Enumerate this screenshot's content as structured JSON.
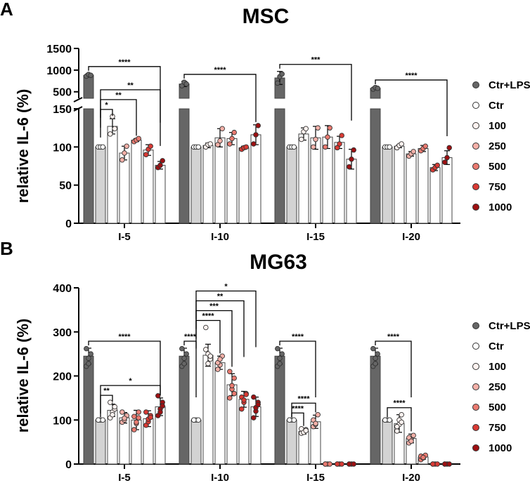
{
  "chart_data": [
    {
      "panel": "A",
      "title": "MSC",
      "type": "bar",
      "ylabel": "relative IL-6 (%)",
      "axis_break": {
        "lower_range": [
          0,
          150
        ],
        "lower_ticks": [
          0,
          50,
          100,
          150
        ],
        "upper_range": [
          350,
          1500
        ],
        "upper_ticks": [
          500,
          1000,
          1500
        ]
      },
      "categories": [
        "I-5",
        "I-10",
        "I-15",
        "I-20"
      ],
      "series": [
        {
          "name": "Ctr+LPS",
          "color": "#666666",
          "values": [
            880,
            680,
            820,
            580
          ],
          "errors": [
            40,
            60,
            150,
            30
          ],
          "points": [
            [
              860,
              900,
              880
            ],
            [
              640,
              720,
              680
            ],
            [
              700,
              850,
              910
            ],
            [
              560,
              600,
              580
            ]
          ]
        },
        {
          "name": "Ctr",
          "color": "#d3d3d3",
          "values": [
            100,
            100,
            100,
            100
          ],
          "errors": [
            0,
            0,
            0,
            0
          ],
          "points": [
            [
              100,
              100,
              100
            ],
            [
              100,
              100,
              100
            ],
            [
              100,
              100,
              100
            ],
            [
              100,
              100,
              100
            ]
          ]
        },
        {
          "name": "100",
          "color": "#ffffff",
          "values": [
            127,
            102,
            117,
            101
          ],
          "errors": [
            10,
            3,
            8,
            2
          ],
          "points": [
            [
              117,
              140,
              124
            ],
            [
              100,
              103,
              104
            ],
            [
              110,
              120,
              124
            ],
            [
              99,
              102,
              104
            ]
          ]
        },
        {
          "name": "250",
          "color": "#ffffff",
          "values": [
            92,
            112,
            112,
            91
          ],
          "errors": [
            9,
            12,
            15,
            3
          ],
          "points": [
            [
              83,
              92,
              101
            ],
            [
              103,
              108,
              124
            ],
            [
              100,
              110,
              125
            ],
            [
              88,
              91,
              94
            ]
          ]
        },
        {
          "name": "500",
          "color": "#ffffff",
          "values": [
            109,
            111,
            113,
            98
          ],
          "errors": [
            2,
            8,
            15,
            4
          ],
          "points": [
            [
              107,
              109,
              111
            ],
            [
              104,
              111,
              119
            ],
            [
              100,
              113,
              125
            ],
            [
              95,
              98,
              101
            ]
          ]
        },
        {
          "name": "750",
          "color": "#ffffff",
          "values": [
            96,
            99,
            106,
            73
          ],
          "errors": [
            7,
            2,
            8,
            4
          ],
          "points": [
            [
              90,
              97,
              101
            ],
            [
              97,
              99,
              100
            ],
            [
              99,
              104,
              115
            ],
            [
              70,
              73,
              76
            ]
          ]
        },
        {
          "name": "1000",
          "color": "#ffffff",
          "values": [
            76,
            116,
            84,
            86
          ],
          "errors": [
            5,
            13,
            13,
            9
          ],
          "points": [
            [
              73,
              76,
              82
            ],
            [
              104,
              116,
              128
            ],
            [
              74,
              84,
              96
            ],
            [
              80,
              86,
              99
            ]
          ]
        }
      ],
      "comparisons": [
        {
          "category": "I-5",
          "from": "Ctr",
          "to": "100",
          "label": "*"
        },
        {
          "category": "I-5",
          "from": "Ctr",
          "to": "500",
          "label": "**"
        },
        {
          "category": "I-5",
          "from": "Ctr",
          "to": "1000",
          "label": "**"
        },
        {
          "category": "I-5",
          "from": "Ctr+LPS",
          "to": "1000",
          "label": "****"
        },
        {
          "category": "I-10",
          "from": "Ctr+LPS",
          "to": "1000",
          "label": "****"
        },
        {
          "category": "I-15",
          "from": "Ctr+LPS",
          "to": "1000",
          "label": "***"
        },
        {
          "category": "I-20",
          "from": "Ctr+LPS",
          "to": "1000",
          "label": "****"
        }
      ]
    },
    {
      "panel": "B",
      "title": "MG63",
      "type": "bar",
      "ylabel": "relative IL-6 (%)",
      "ylim": [
        0,
        400
      ],
      "yticks": [
        0,
        100,
        200,
        300,
        400
      ],
      "categories": [
        "I-5",
        "I-10",
        "I-15",
        "I-20"
      ],
      "series": [
        {
          "name": "Ctr+LPS",
          "color": "#666666",
          "values": [
            245,
            245,
            245,
            245
          ],
          "errors": [
            18,
            18,
            18,
            18
          ],
          "points": [
            [
              222,
              240,
              250,
              262,
              228
            ],
            [
              222,
              240,
              250,
              262,
              228
            ],
            [
              222,
              240,
              250,
              262,
              228
            ],
            [
              222,
              240,
              250,
              262,
              228
            ]
          ]
        },
        {
          "name": "Ctr",
          "color": "#d3d3d3",
          "values": [
            100,
            100,
            100,
            100
          ],
          "errors": [
            0,
            0,
            0,
            0
          ],
          "points": [
            [
              100,
              100,
              100,
              100
            ],
            [
              100,
              100,
              100,
              100
            ],
            [
              100,
              100,
              100,
              100
            ],
            [
              100,
              100,
              100,
              100
            ]
          ]
        },
        {
          "name": "100",
          "color": "#ffffff",
          "values": [
            122,
            247,
            74,
            92
          ],
          "errors": [
            14,
            25,
            6,
            20
          ],
          "points": [
            [
              105,
              118,
              125,
              140,
              112,
              130
            ],
            [
              310,
              250,
              238,
              260,
              228,
              245
            ],
            [
              70,
              74,
              78,
              80,
              72,
              76
            ],
            [
              75,
              90,
              112,
              85,
              100,
              95
            ]
          ]
        },
        {
          "name": "250",
          "color": "#ffffff",
          "values": [
            105,
            230,
            96,
            58
          ],
          "errors": [
            12,
            15,
            15,
            10
          ],
          "points": [
            [
              95,
              100,
              110,
              118,
              104
            ],
            [
              215,
              225,
              245,
              230,
              238
            ],
            [
              85,
              90,
              112,
              100,
              92
            ],
            [
              48,
              55,
              65,
              60,
              52
            ]
          ]
        },
        {
          "name": "500",
          "color": "#ffffff",
          "values": [
            100,
            180,
            0,
            16
          ],
          "errors": [
            22,
            25,
            0,
            5
          ],
          "points": [
            [
              78,
              92,
              118,
              108,
              95,
              105
            ],
            [
              150,
              170,
              195,
              210,
              178,
              160
            ],
            [
              0,
              0,
              0,
              0
            ],
            [
              10,
              14,
              20,
              18,
              15
            ]
          ]
        },
        {
          "name": "750",
          "color": "#ffffff",
          "values": [
            103,
            147,
            0,
            0
          ],
          "errors": [
            18,
            18,
            0,
            0
          ],
          "points": [
            [
              88,
              96,
              110,
              118,
              102,
              106
            ],
            [
              125,
              140,
              160,
              152,
              145,
              158
            ],
            [
              0,
              0,
              0,
              0
            ],
            [
              0,
              0,
              0,
              0
            ]
          ]
        },
        {
          "name": "1000",
          "color": "#ffffff",
          "values": [
            130,
            130,
            0,
            0
          ],
          "errors": [
            20,
            22,
            0,
            0
          ],
          "points": [
            [
              110,
              125,
              140,
              155,
              118,
              132
            ],
            [
              105,
              120,
              140,
              152,
              128,
              135
            ],
            [
              0,
              0,
              0,
              0
            ],
            [
              0,
              0,
              0,
              0
            ]
          ]
        }
      ],
      "comparisons": [
        {
          "category": "I-5",
          "from": "Ctr",
          "to": "100",
          "label": "**"
        },
        {
          "category": "I-5",
          "from": "Ctr",
          "to": "1000",
          "label": "*"
        },
        {
          "category": "I-5",
          "from": "Ctr+LPS",
          "to": "1000",
          "label": "****"
        },
        {
          "category": "I-10",
          "from": "Ctr+LPS",
          "to": "Ctr",
          "label": "****"
        },
        {
          "category": "I-10",
          "from": "Ctr",
          "to": "250",
          "label": "****"
        },
        {
          "category": "I-10",
          "from": "Ctr",
          "to": "500",
          "label": "***"
        },
        {
          "category": "I-10",
          "from": "Ctr",
          "to": "750",
          "label": "**"
        },
        {
          "category": "I-10",
          "from": "Ctr",
          "to": "1000",
          "label": "*"
        },
        {
          "category": "I-15",
          "from": "Ctr",
          "to": "100",
          "label": "****"
        },
        {
          "category": "I-15",
          "from": "Ctr",
          "to": "250",
          "label": "****"
        },
        {
          "category": "I-15",
          "from": "Ctr+LPS",
          "to": "250",
          "label": "****"
        },
        {
          "category": "I-20",
          "from": "Ctr",
          "to": "250",
          "label": "****"
        },
        {
          "category": "I-20",
          "from": "Ctr+LPS",
          "to": "250",
          "label": "****"
        }
      ]
    }
  ],
  "legend": {
    "items": [
      {
        "label": "Ctr+LPS",
        "color": "#666666"
      },
      {
        "label": "Ctr",
        "color": "#ffffff"
      },
      {
        "label": "100",
        "color": "#fff3f0"
      },
      {
        "label": "250",
        "color": "#f4b0a8"
      },
      {
        "label": "500",
        "color": "#ea7a70"
      },
      {
        "label": "750",
        "color": "#d93a34"
      },
      {
        "label": "1000",
        "color": "#9e1012"
      }
    ]
  },
  "dot_colors": [
    "#666666",
    "#ffffff",
    "#fff3f0",
    "#f4b0a8",
    "#ea7a70",
    "#d93a34",
    "#9e1012"
  ]
}
